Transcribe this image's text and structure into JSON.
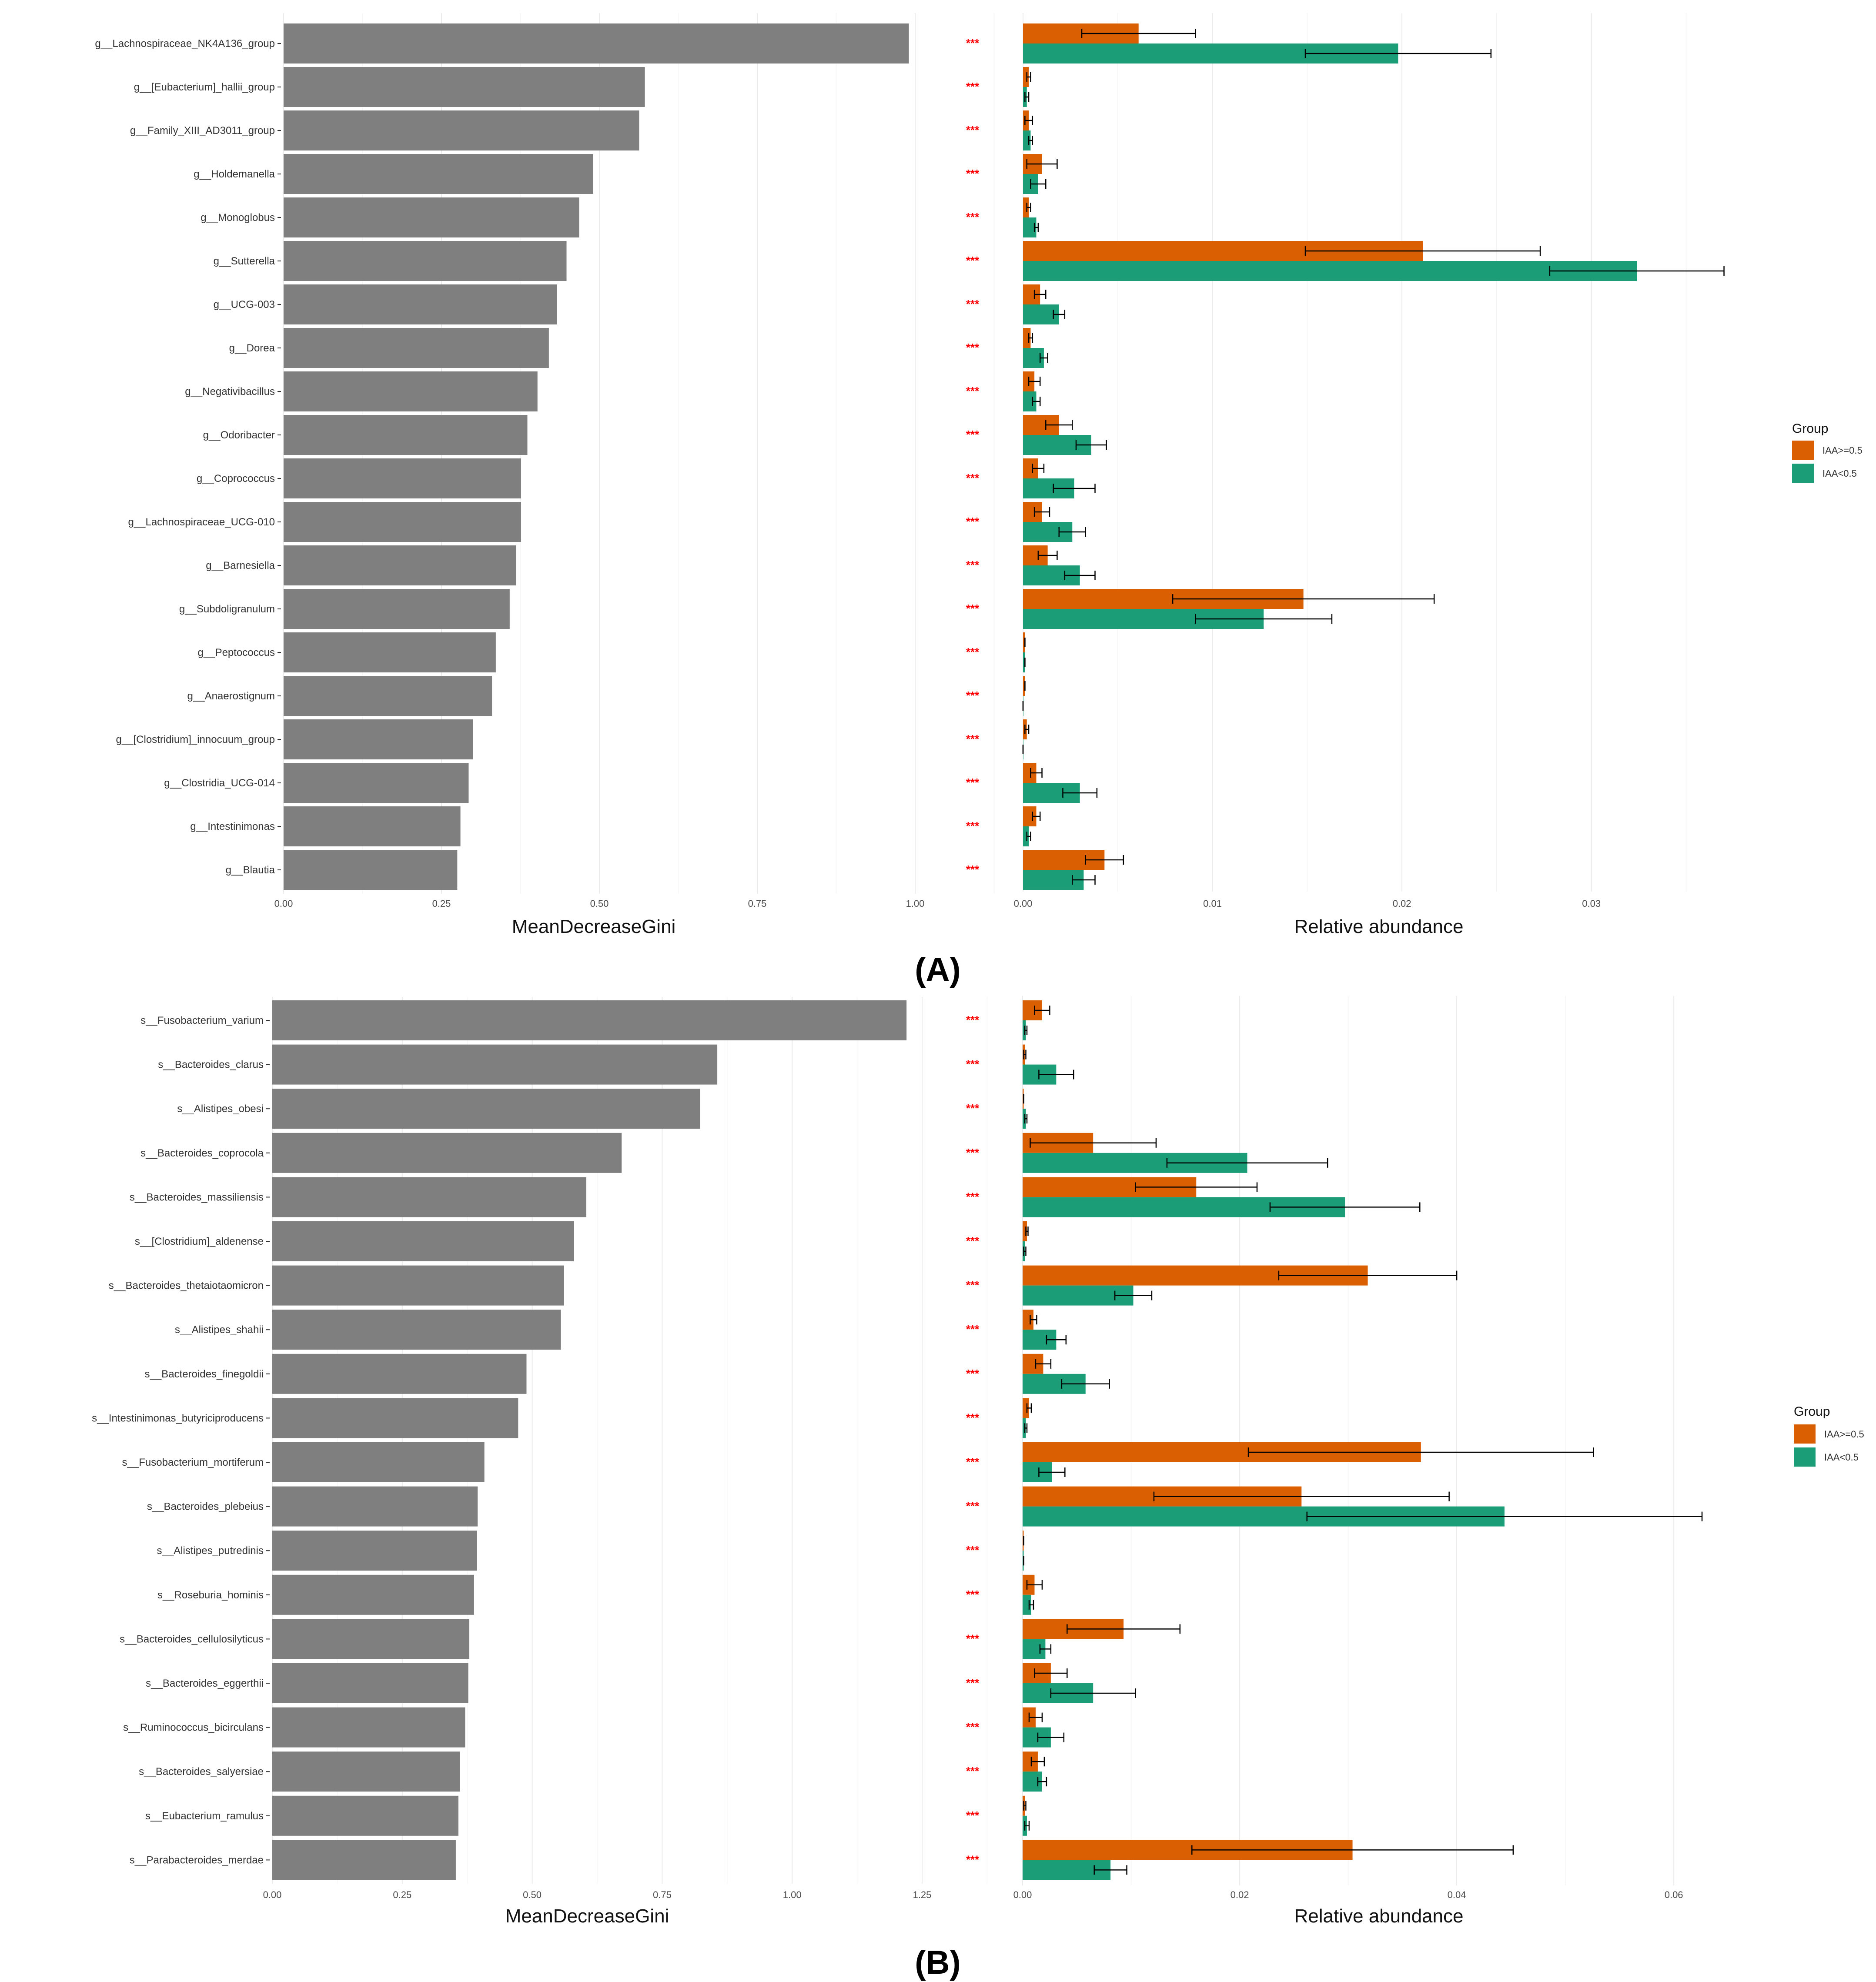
{
  "colors": {
    "gini_bar": "#7f7f7f",
    "group_high": "#d95f02",
    "group_low": "#1b9e77",
    "significance": "#ff0000",
    "grid": "#ebebeb",
    "text": "#222222"
  },
  "chart_data": [
    {
      "panel_label": "(A)",
      "type": "bar",
      "gini": {
        "title": "MeanDecreaseGini",
        "ticks": [
          "0.00",
          "0.25",
          "0.50",
          "0.75",
          "1.00"
        ],
        "xlim": [
          0,
          1.0
        ],
        "categories": [
          "g__Lachnospiraceae_NK4A136_group",
          "g__[Eubacterium]_hallii_group",
          "g__Family_XIII_AD3011_group",
          "g__Holdemanella",
          "g__Monoglobus",
          "g__Sutterella",
          "g__UCG-003",
          "g__Dorea",
          "g__Negativibacillus",
          "g__Odoribacter",
          "g__Coprococcus",
          "g__Lachnospiraceae_UCG-010",
          "g__Barnesiella",
          "g__Subdoligranulum",
          "g__Peptococcus",
          "g__Anaerostignum",
          "g__[Clostridium]_innocuum_group",
          "g__Clostridia_UCG-014",
          "g__Intestinimonas",
          "g__Blautia"
        ],
        "values": [
          0.99,
          0.572,
          0.563,
          0.49,
          0.468,
          0.448,
          0.433,
          0.42,
          0.402,
          0.386,
          0.376,
          0.376,
          0.368,
          0.358,
          0.336,
          0.33,
          0.3,
          0.293,
          0.28,
          0.275
        ]
      },
      "significance": [
        "***",
        "***",
        "***",
        "***",
        "***",
        "***",
        "***",
        "***",
        "***",
        "***",
        "***",
        "***",
        "***",
        "***",
        "***",
        "***",
        "***",
        "***",
        "***",
        "***"
      ],
      "abundance": {
        "title": "Relative abundance",
        "ticks": [
          "0.00",
          "0.01",
          "0.02",
          "0.03"
        ],
        "xlim": [
          0,
          0.036
        ],
        "series": [
          {
            "name": "IAA>=0.5",
            "values": [
              0.0061,
              0.0003,
              0.0003,
              0.001,
              0.0003,
              0.0211,
              0.0009,
              0.0004,
              0.0006,
              0.0019,
              0.0008,
              0.001,
              0.0013,
              0.0148,
              0.0001,
              0.0001,
              0.0002,
              0.0007,
              0.0007,
              0.0043
            ],
            "err": [
              0.003,
              0.0001,
              0.0002,
              0.0008,
              0.0001,
              0.0062,
              0.0003,
              0.0001,
              0.0003,
              0.0007,
              0.0003,
              0.0004,
              0.0005,
              0.0069,
              0.0,
              0.0,
              0.0001,
              0.0003,
              0.0002,
              0.001
            ]
          },
          {
            "name": "IAA<0.5",
            "values": [
              0.0198,
              0.0002,
              0.0004,
              0.0008,
              0.0007,
              0.0324,
              0.0019,
              0.0011,
              0.0007,
              0.0036,
              0.0027,
              0.0026,
              0.003,
              0.0127,
              0.0001,
              0.0,
              0.0,
              0.003,
              0.0003,
              0.0032
            ],
            "err": [
              0.0049,
              0.0001,
              0.0001,
              0.0004,
              0.0001,
              0.0046,
              0.0003,
              0.0002,
              0.0002,
              0.0008,
              0.0011,
              0.0007,
              0.0008,
              0.0036,
              0.0,
              0.0,
              0.0,
              0.0009,
              0.0001,
              0.0006
            ]
          }
        ]
      },
      "legend": {
        "title": "Group",
        "labels": [
          "IAA>=0.5",
          "IAA<0.5"
        ]
      }
    },
    {
      "panel_label": "(B)",
      "type": "bar",
      "gini": {
        "title": "MeanDecreaseGini",
        "ticks": [
          "0.00",
          "0.25",
          "0.50",
          "0.75",
          "1.00",
          "1.25"
        ],
        "xlim": [
          0,
          1.25
        ],
        "categories": [
          "s__Fusobacterium_varium",
          "s__Bacteroides_clarus",
          "s__Alistipes_obesi",
          "s__Bacteroides_coprocola",
          "s__Bacteroides_massiliensis",
          "s__[Clostridium]_aldenense",
          "s__Bacteroides_thetaiotaomicron",
          "s__Alistipes_shahii",
          "s__Bacteroides_finegoldii",
          "s__Intestinimonas_butyriciproducens",
          "s__Fusobacterium_mortiferum",
          "s__Bacteroides_plebeius",
          "s__Alistipes_putredinis",
          "s__Roseburia_hominis",
          "s__Bacteroides_cellulosilyticus",
          "s__Bacteroides_eggerthii",
          "s__Ruminococcus_bicirculans",
          "s__Bacteroides_salyersiae",
          "s__Eubacterium_ramulus",
          "s__Parabacteroides_merdae"
        ],
        "values": [
          1.22,
          0.856,
          0.823,
          0.672,
          0.604,
          0.58,
          0.561,
          0.555,
          0.489,
          0.473,
          0.408,
          0.395,
          0.394,
          0.388,
          0.379,
          0.377,
          0.371,
          0.361,
          0.358,
          0.353
        ]
      },
      "significance": [
        "***",
        "***",
        "***",
        "***",
        "***",
        "***",
        "***",
        "***",
        "***",
        "***",
        "***",
        "***",
        "***",
        "***",
        "***",
        "***",
        "***",
        "***",
        "***",
        "***"
      ],
      "abundance": {
        "title": "Relative abundance",
        "ticks": [
          "0.00",
          "0.02",
          "0.04",
          "0.06"
        ],
        "xlim": [
          0,
          0.063
        ],
        "series": [
          {
            "name": "IAA>=0.5",
            "values": [
              0.0018,
              0.0002,
              0.0001,
              0.0065,
              0.016,
              0.0004,
              0.0318,
              0.001,
              0.0019,
              0.0006,
              0.0367,
              0.0257,
              0.0001,
              0.0011,
              0.0093,
              0.0026,
              0.0012,
              0.0014,
              0.0002,
              0.0304
            ],
            "err": [
              0.0007,
              0.0001,
              0.0,
              0.0058,
              0.0056,
              0.0001,
              0.0082,
              0.0003,
              0.0007,
              0.0002,
              0.0159,
              0.0136,
              0.0,
              0.0007,
              0.0052,
              0.0015,
              0.0006,
              0.0006,
              0.0001,
              0.0148
            ],
            "missing": []
          },
          {
            "name": "IAA<0.5",
            "values": [
              0.0003,
              0.0031,
              0.0003,
              0.0207,
              0.0297,
              0.0002,
              0.0102,
              0.0031,
              0.0058,
              0.0003,
              0.0027,
              0.0444,
              0.0001,
              0.0008,
              0.0021,
              0.0065,
              0.0026,
              0.0018,
              0.0004,
              0.0081
            ],
            "err": [
              0.0001,
              0.0016,
              0.0001,
              0.0074,
              0.0069,
              0.0001,
              0.0017,
              0.0009,
              0.0022,
              0.0001,
              0.0012,
              0.0182,
              0.0,
              0.0002,
              0.0005,
              0.0039,
              0.0012,
              0.0004,
              0.0002,
              0.0015
            ]
          }
        ]
      },
      "legend": {
        "title": "Group",
        "labels": [
          "IAA>=0.5",
          "IAA<0.5"
        ]
      }
    }
  ]
}
